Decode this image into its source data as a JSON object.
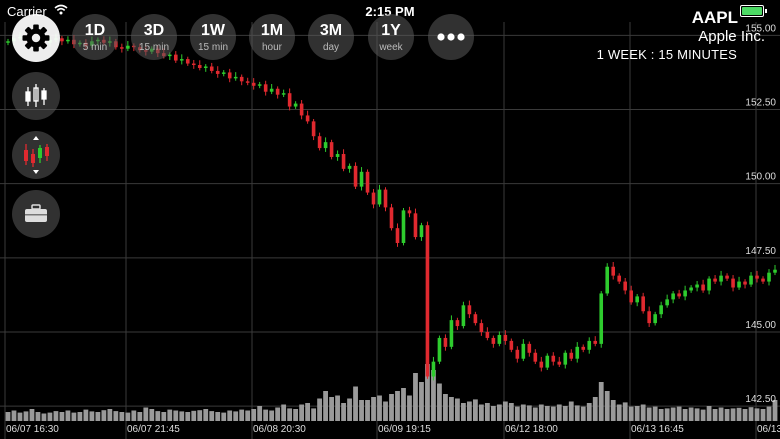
{
  "status_bar": {
    "carrier": "Carrier",
    "time": "2:15 PM"
  },
  "ranges": [
    {
      "label": "1D",
      "sub": "5 min"
    },
    {
      "label": "3D",
      "sub": "15 min"
    },
    {
      "label": "1W",
      "sub": "15 min"
    },
    {
      "label": "1M",
      "sub": "hour"
    },
    {
      "label": "3M",
      "sub": "day"
    },
    {
      "label": "1Y",
      "sub": "week"
    }
  ],
  "icons": {
    "settings": "gear-icon",
    "more": "more-icon",
    "candles": "candlestick-icon",
    "indicators": "indicators-icon",
    "portfolio": "briefcase-icon"
  },
  "stock": {
    "ticker": "AAPL",
    "name": "Apple Inc.",
    "period": "1 WEEK : 15 MINUTES"
  },
  "colors": {
    "up": "#2ecc2e",
    "down": "#e0292f",
    "volume": "#9a9a9a",
    "grid": "#3a3a3a",
    "battery": "#4cd964"
  },
  "chart_data": {
    "type": "candlestick",
    "y_tick_labels": [
      "155.00",
      "152.50",
      "150.00",
      "147.50",
      "145.00",
      "142.50"
    ],
    "y_ticks": [
      155.0,
      152.5,
      150.0,
      147.5,
      145.0,
      142.5
    ],
    "ylim": [
      142.0,
      155.45
    ],
    "x_labels": [
      "06/07 16:30",
      "06/07 21:45",
      "06/08 20:30",
      "06/09 19:15",
      "06/12 18:00",
      "06/13 16:45",
      "06/13"
    ],
    "candles": {
      "close": [
        154.8,
        154.9,
        154.95,
        154.85,
        154.95,
        154.8,
        154.75,
        154.85,
        154.9,
        154.8,
        154.85,
        154.7,
        154.75,
        154.65,
        154.8,
        154.85,
        154.75,
        154.8,
        154.6,
        154.55,
        154.65,
        154.6,
        154.5,
        154.45,
        154.55,
        154.4,
        154.3,
        154.35,
        154.15,
        154.2,
        154.05,
        154.0,
        153.9,
        153.95,
        153.8,
        153.7,
        153.75,
        153.55,
        153.6,
        153.45,
        153.4,
        153.3,
        153.35,
        153.1,
        153.2,
        153.0,
        153.05,
        152.6,
        152.7,
        152.3,
        152.1,
        151.6,
        151.2,
        151.4,
        150.9,
        151.0,
        150.5,
        150.6,
        149.9,
        150.4,
        149.7,
        149.3,
        149.8,
        149.2,
        148.5,
        148.0,
        149.1,
        149.0,
        148.2,
        148.6,
        143.5,
        144.0,
        144.8,
        144.5,
        145.4,
        145.2,
        145.9,
        145.6,
        145.3,
        145.0,
        144.8,
        144.6,
        144.9,
        144.7,
        144.4,
        144.1,
        144.6,
        144.3,
        144.0,
        143.8,
        144.2,
        144.0,
        143.9,
        144.3,
        144.1,
        144.5,
        144.4,
        144.7,
        144.6,
        146.3,
        147.2,
        146.9,
        146.7,
        146.4,
        146.0,
        146.2,
        145.7,
        145.3,
        145.6,
        145.9,
        146.1,
        146.3,
        146.2,
        146.4,
        146.5,
        146.6,
        146.4,
        146.8,
        146.7,
        146.9,
        146.8,
        146.5,
        146.7,
        146.6,
        146.9,
        146.8,
        146.7,
        147.0,
        147.1
      ],
      "volume": [
        0.3,
        0.35,
        0.28,
        0.32,
        0.4,
        0.3,
        0.25,
        0.28,
        0.33,
        0.3,
        0.35,
        0.28,
        0.3,
        0.38,
        0.32,
        0.3,
        0.36,
        0.4,
        0.33,
        0.3,
        0.28,
        0.35,
        0.3,
        0.45,
        0.4,
        0.33,
        0.3,
        0.38,
        0.35,
        0.32,
        0.3,
        0.34,
        0.36,
        0.4,
        0.33,
        0.3,
        0.28,
        0.35,
        0.32,
        0.38,
        0.35,
        0.4,
        0.5,
        0.38,
        0.35,
        0.45,
        0.55,
        0.42,
        0.4,
        0.55,
        0.6,
        0.42,
        0.75,
        1.0,
        0.8,
        0.85,
        0.6,
        0.75,
        1.15,
        0.7,
        0.7,
        0.8,
        0.85,
        0.65,
        0.9,
        1.0,
        1.1,
        0.85,
        1.6,
        1.3,
        1.9,
        1.7,
        1.25,
        0.9,
        0.8,
        0.75,
        0.6,
        0.65,
        0.72,
        0.55,
        0.6,
        0.5,
        0.55,
        0.65,
        0.6,
        0.48,
        0.55,
        0.52,
        0.45,
        0.55,
        0.5,
        0.48,
        0.55,
        0.5,
        0.65,
        0.52,
        0.48,
        0.6,
        0.8,
        1.3,
        1.0,
        0.7,
        0.55,
        0.62,
        0.48,
        0.5,
        0.55,
        0.45,
        0.48,
        0.4,
        0.42,
        0.45,
        0.48,
        0.4,
        0.45,
        0.42,
        0.38,
        0.5,
        0.4,
        0.45,
        0.4,
        0.42,
        0.44,
        0.4,
        0.46,
        0.42,
        0.4,
        0.48,
        0.7
      ]
    }
  }
}
